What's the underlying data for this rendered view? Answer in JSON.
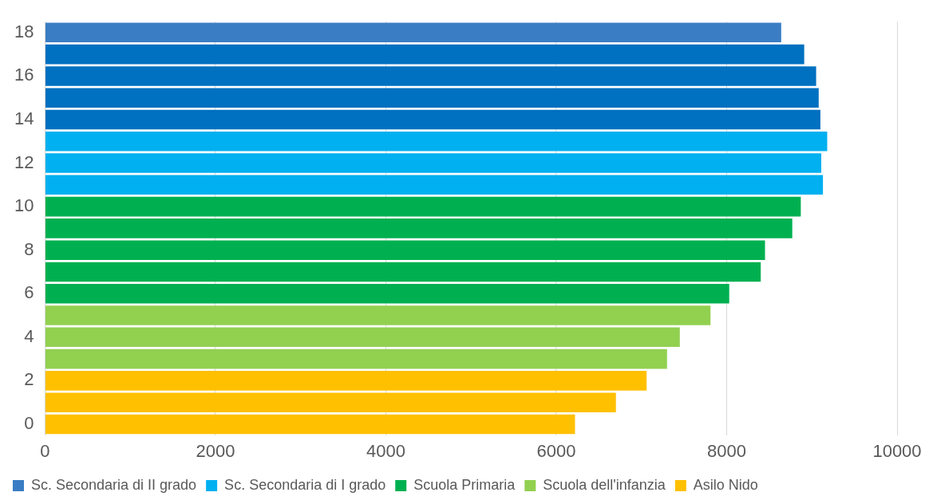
{
  "chart_data": {
    "type": "bar",
    "orientation": "horizontal",
    "categories": [
      "18",
      null,
      "16",
      null,
      "14",
      null,
      "12",
      null,
      "10",
      null,
      "8",
      null,
      "6",
      null,
      "4",
      null,
      "2",
      null,
      "0"
    ],
    "series": [
      {
        "name": "Sc. Secondaria di II grado",
        "color": "#3a7dc4",
        "colors": [
          "#3a7dc4",
          "#0070c0",
          "#0070c0",
          "#0070c0",
          "#0070c0",
          null,
          null,
          null,
          null,
          null,
          null,
          null,
          null,
          null,
          null,
          null,
          null,
          null,
          null
        ],
        "values": [
          8640,
          8910,
          9050,
          9080,
          9100,
          null,
          null,
          null,
          null,
          null,
          null,
          null,
          null,
          null,
          null,
          null,
          null,
          null,
          null
        ]
      },
      {
        "name": "Sc. Secondaria di I grado",
        "color": "#00b0f0",
        "values": [
          null,
          null,
          null,
          null,
          null,
          9180,
          9110,
          9130,
          null,
          null,
          null,
          null,
          null,
          null,
          null,
          null,
          null,
          null,
          null
        ]
      },
      {
        "name": "Scuola Primaria",
        "color": "#00b050",
        "values": [
          null,
          null,
          null,
          null,
          null,
          null,
          null,
          null,
          8870,
          8770,
          8450,
          8400,
          8030,
          null,
          null,
          null,
          null,
          null,
          null
        ]
      },
      {
        "name": "Scuola dell'infanzia",
        "color": "#92d050",
        "values": [
          null,
          null,
          null,
          null,
          null,
          null,
          null,
          null,
          null,
          null,
          null,
          null,
          null,
          7810,
          7450,
          7300,
          null,
          null,
          null
        ]
      },
      {
        "name": "Asilo Nido",
        "color": "#ffc000",
        "values": [
          null,
          null,
          null,
          null,
          null,
          null,
          null,
          null,
          null,
          null,
          null,
          null,
          null,
          null,
          null,
          null,
          7060,
          6700,
          6220
        ]
      }
    ],
    "xlim": [
      0,
      10000
    ],
    "xticks": [
      0,
      2000,
      4000,
      6000,
      8000,
      10000
    ],
    "grid": "x",
    "legend": "bottom"
  }
}
